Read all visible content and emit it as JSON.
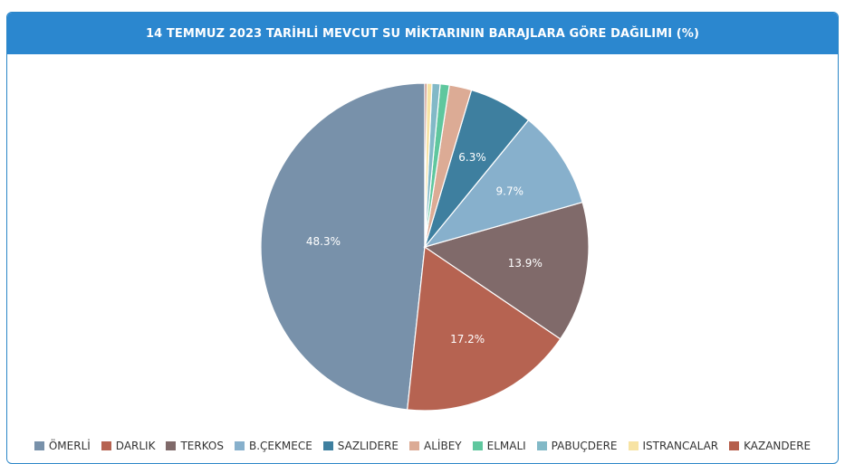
{
  "header": {
    "title": "14 TEMMUZ 2023 TARİHLİ MEVCUT SU MİKTARININ BARAJLARA GÖRE DAĞILIMI (%)"
  },
  "chart_data": {
    "type": "pie",
    "title": "14 TEMMUZ 2023 TARİHLİ MEVCUT SU MİKTARININ BARAJLARA GÖRE DAĞILIMI (%)",
    "legend_position": "bottom",
    "categories": [
      "ÖMERLİ",
      "DARLIK",
      "TERKOS",
      "B.ÇEKMECE",
      "SAZLIDERE",
      "ALİBEY",
      "ELMALI",
      "PABUÇDERE",
      "ISTRANCALAR",
      "KAZANDERE"
    ],
    "values": [
      48.3,
      17.2,
      13.9,
      9.7,
      6.3,
      2.2,
      0.9,
      0.8,
      0.5,
      0.2
    ],
    "labels": [
      "48.3%",
      "17.2%",
      "13.9%",
      "9.7%",
      "6.3%",
      "",
      "",
      "",
      "",
      ""
    ],
    "colors": [
      "#7891aa",
      "#b66351",
      "#806a6a",
      "#87b0cc",
      "#3e7f9f",
      "#dcab95",
      "#5fc79e",
      "#82b9c7",
      "#f7e3a3",
      "#b55e4b"
    ]
  }
}
